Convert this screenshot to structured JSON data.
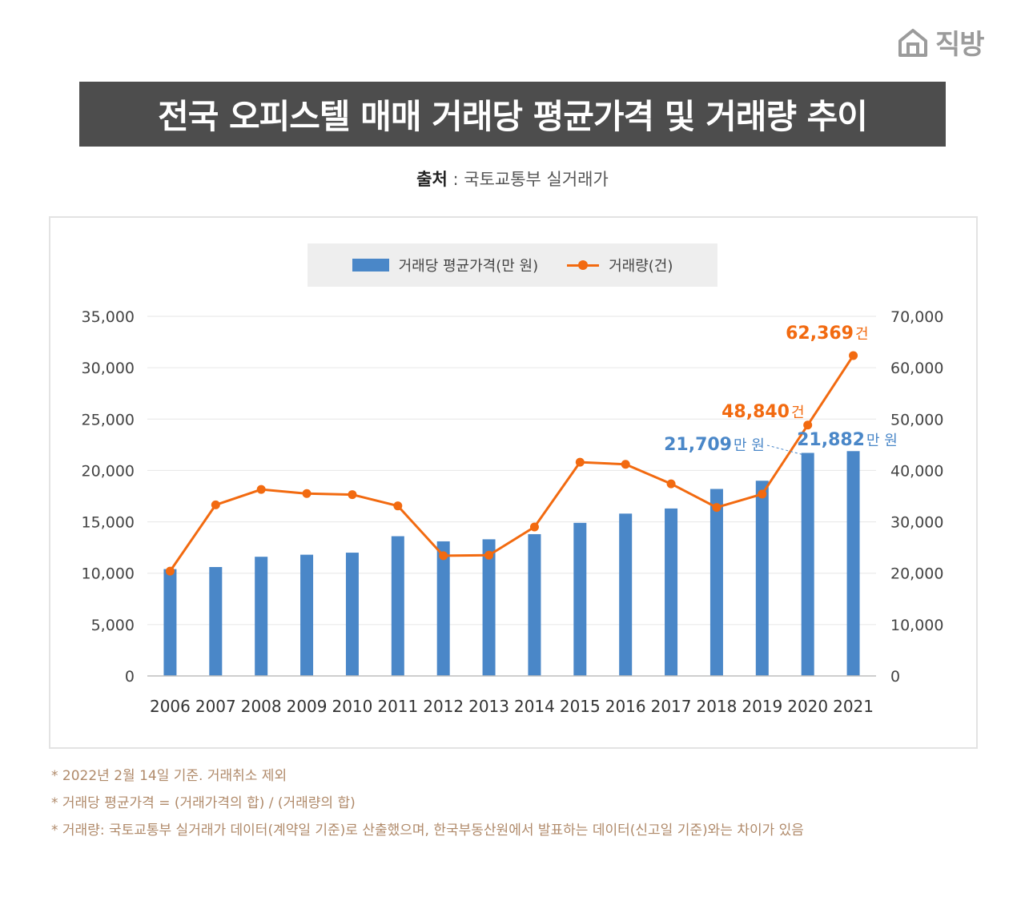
{
  "brand": {
    "logo_text": "직방",
    "logo_icon": "house-icon"
  },
  "title": "전국 오피스텔 매매 거래당 평균가격 및 거래량 추이",
  "source": {
    "label": "출처",
    "separator": " : ",
    "text": "국토교통부 실거래가"
  },
  "legend": {
    "bar_label": "거래당 평균가격(만 원)",
    "line_label": "거래량(건)"
  },
  "colors": {
    "bar": "#4a87c8",
    "line": "#f26a10",
    "title_bg": "#4d4d4d"
  },
  "chart_data": {
    "type": "bar",
    "categories": [
      "2006",
      "2007",
      "2008",
      "2009",
      "2010",
      "2011",
      "2012",
      "2013",
      "2014",
      "2015",
      "2016",
      "2017",
      "2018",
      "2019",
      "2020",
      "2021"
    ],
    "series": [
      {
        "name": "거래당 평균가격(만 원)",
        "type": "bar",
        "axis": "left",
        "values": [
          10400,
          10600,
          11600,
          11800,
          12000,
          13600,
          13100,
          13300,
          13800,
          14900,
          15800,
          16300,
          18200,
          19000,
          21709,
          21882
        ]
      },
      {
        "name": "거래량(건)",
        "type": "line",
        "axis": "right",
        "values": [
          20400,
          33300,
          36300,
          35500,
          35300,
          33100,
          23400,
          23500,
          29000,
          41600,
          41200,
          37400,
          32800,
          35400,
          48840,
          62369
        ]
      }
    ],
    "y_left": {
      "min": 0,
      "max": 35000,
      "ticks": [
        "0",
        "5,000",
        "10,000",
        "15,000",
        "20,000",
        "25,000",
        "30,000",
        "35,000"
      ]
    },
    "y_right": {
      "min": 0,
      "max": 70000,
      "ticks": [
        "0",
        "10,000",
        "20,000",
        "30,000",
        "40,000",
        "50,000",
        "60,000",
        "70,000"
      ]
    },
    "grid": true,
    "legend_position": "top-center",
    "annotations": [
      {
        "series": "bar",
        "index": 14,
        "value_text": "21,709",
        "unit": "만 원"
      },
      {
        "series": "bar",
        "index": 15,
        "value_text": "21,882",
        "unit": "만 원"
      },
      {
        "series": "line",
        "index": 14,
        "value_text": "48,840",
        "unit": "건"
      },
      {
        "series": "line",
        "index": 15,
        "value_text": "62,369",
        "unit": "건"
      }
    ]
  },
  "notes": [
    "* 2022년 2월 14일 기준. 거래취소 제외",
    "* 거래당 평균가격 = (거래가격의 합) / (거래량의 합)",
    "* 거래량: 국토교통부 실거래가 데이터(계약일 기준)로 산출했으며, 한국부동산원에서 발표하는 데이터(신고일 기준)와는 차이가 있음"
  ]
}
